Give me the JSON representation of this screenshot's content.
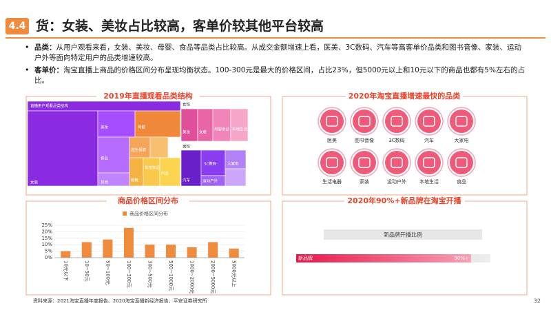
{
  "header": {
    "number": "4.4",
    "title": "货：女装、美妆占比较高，客单价较其他平台较高"
  },
  "bullets": [
    {
      "label": "品类：",
      "text": "从用户观看来看，女装、美妆、母婴、食品等品类占比较高。从成交金额增速上看，医美、3C数码、汽车等高客单价品类和图书音像、家装、运动户外等面向特定用户的品类增速较高。"
    },
    {
      "label": "客单价：",
      "text": "淘宝直播上商品的价格区间分布呈现均衡状态。100-300元是最大的价格区间，占比23%，但5000元以上和10元以下的商品也都有5%左右的占比。"
    }
  ],
  "treemap": {
    "title": "2019年直播观看品类结构",
    "labels": [
      "直播用户观看品类结构",
      "女装",
      "美妆",
      "母婴",
      "食品",
      "其他",
      "滋补保健",
      "珠宝饰品",
      "鞋靴",
      "内衣",
      "女性",
      "美妆",
      "女装",
      "母婴用品",
      "本地生活",
      "男性",
      "汽车",
      "3C数码",
      "运动户外",
      "大家电"
    ]
  },
  "fastest": {
    "title": "2020年淘宝直播增速最快的品类",
    "items": [
      "医美",
      "图书音像",
      "3C数码",
      "汽车",
      "大家电",
      "生活电器",
      "家装",
      "运动户外",
      "本地生活",
      "食品"
    ]
  },
  "chart_data": {
    "type": "bar",
    "title": "商品价格区间分布",
    "series": [
      {
        "name": "商品价格区间分布",
        "color": "#f08a3c",
        "values": [
          5,
          12,
          14,
          23,
          10,
          10,
          8,
          12,
          7
        ]
      }
    ],
    "categories": [
      "10元以下",
      "10~50元",
      "50~100元",
      "100~300元",
      "300~500元",
      "500~1000元",
      "1000~2000元",
      "2000~5000元",
      "5000元以上"
    ],
    "ylim": [
      0,
      25
    ],
    "yticks": [
      {
        "value": 0,
        "label": "0%"
      },
      {
        "value": 5,
        "label": "5%"
      },
      {
        "value": 10,
        "label": "10%"
      },
      {
        "value": 15,
        "label": "15%"
      },
      {
        "value": 20,
        "label": "20%"
      },
      {
        "value": 25,
        "label": "25%"
      }
    ]
  },
  "new_brand": {
    "title": "2020年90%+新品牌在淘宝开播",
    "subtitle": "新品牌开播比例",
    "label": "新品牌",
    "value": 90,
    "value_label": "90%+",
    "xlim": [
      0,
      100
    ]
  },
  "footer": {
    "source": "资料来源：2021淘宝直播年度报告、2020淘宝直播新经济报告、平安证券研究所",
    "page": "32"
  }
}
